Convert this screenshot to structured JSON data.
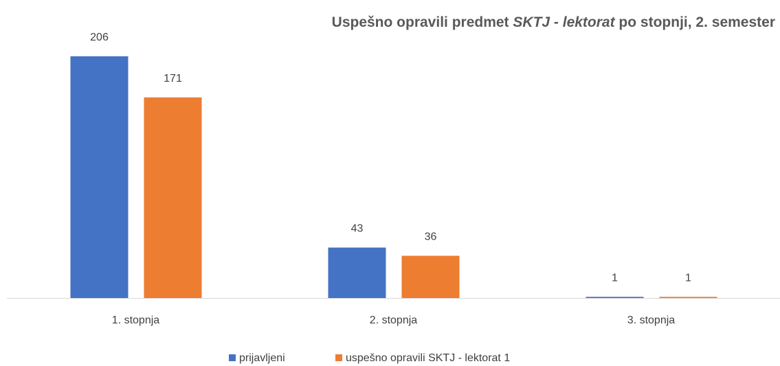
{
  "chart_data": {
    "type": "bar",
    "title": [
      "Uspešno opravili predmet ",
      "SKTJ - lektorat",
      " po stopnji, 2. semester"
    ],
    "title_italic": [
      1
    ],
    "categories": [
      "1. stopnja",
      "2. stopnja",
      "3. stopnja"
    ],
    "series": [
      {
        "name": "prijavljeni",
        "color": "#4472c4",
        "values": [
          206,
          43,
          1
        ]
      },
      {
        "name": "uspešno opravili SKTJ - lektorat 1",
        "color": "#ed7d31",
        "values": [
          171,
          36,
          1
        ]
      }
    ],
    "legend": "bottom"
  }
}
